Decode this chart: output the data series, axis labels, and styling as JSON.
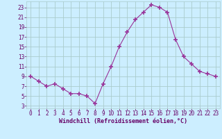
{
  "x": [
    0,
    1,
    2,
    3,
    4,
    5,
    6,
    7,
    8,
    9,
    10,
    11,
    12,
    13,
    14,
    15,
    16,
    17,
    18,
    19,
    20,
    21,
    22,
    23
  ],
  "y": [
    9,
    8,
    7,
    7.5,
    6.5,
    5.5,
    5.5,
    5,
    3.5,
    7.5,
    11,
    15,
    18,
    20.5,
    22,
    23.5,
    23,
    22,
    16.5,
    13,
    11.5,
    10,
    9.5,
    9
  ],
  "line_color": "#993399",
  "marker": "+",
  "marker_size": 4,
  "marker_lw": 1.2,
  "bg_color": "#cceeff",
  "grid_color": "#aacccc",
  "xlabel": "Windchill (Refroidissement éolien,°C)",
  "xlabel_color": "#660066",
  "xlabel_fontsize": 6.0,
  "tick_color": "#660066",
  "tick_fontsize": 5.5,
  "xlim": [
    -0.5,
    23.5
  ],
  "ylim": [
    2.5,
    24.2
  ],
  "yticks": [
    3,
    5,
    7,
    9,
    11,
    13,
    15,
    17,
    19,
    21,
    23
  ],
  "xticks": [
    0,
    1,
    2,
    3,
    4,
    5,
    6,
    7,
    8,
    9,
    10,
    11,
    12,
    13,
    14,
    15,
    16,
    17,
    18,
    19,
    20,
    21,
    22,
    23
  ]
}
